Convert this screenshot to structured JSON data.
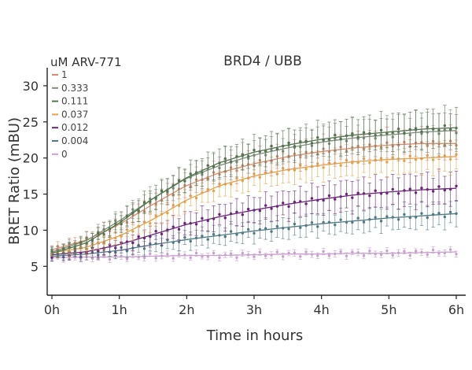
{
  "chart_data": {
    "type": "line",
    "title": "BRD4 / UBB",
    "xlabel": "Time in hours",
    "ylabel": "BRET Ratio (mBU)",
    "xlim": [
      0,
      6
    ],
    "ylim": [
      1,
      32.5
    ],
    "x_ticks": [
      0,
      1,
      2,
      3,
      4,
      5,
      6
    ],
    "x_tick_labels": [
      "0h",
      "1h",
      "2h",
      "3h",
      "4h",
      "5h",
      "6h"
    ],
    "y_ticks": [
      5,
      10,
      15,
      20,
      25,
      30
    ],
    "y_tick_labels": [
      "5",
      "10",
      "15",
      "20",
      "25",
      "30"
    ],
    "grid": false,
    "legend": {
      "title": "uM ARV-771",
      "position": "top-left"
    },
    "x": [
      0,
      0.5,
      1,
      1.5,
      2,
      2.5,
      3,
      3.5,
      4,
      4.5,
      5,
      5.5,
      6
    ],
    "series": [
      {
        "name": "1",
        "color": "#d98a6e",
        "values": [
          7.3,
          8.6,
          10.8,
          13.6,
          16.2,
          18.0,
          19.2,
          20.2,
          20.9,
          21.4,
          21.8,
          22.0,
          22.0
        ],
        "error": [
          0.5,
          0.8,
          1.1,
          1.4,
          1.5,
          1.6,
          1.7,
          1.8,
          1.8,
          1.9,
          1.9,
          2.0,
          2.0
        ]
      },
      {
        "name": "0.333",
        "color": "#7d8f7a",
        "values": [
          7.0,
          8.5,
          11.3,
          14.4,
          17.2,
          19.0,
          20.4,
          21.4,
          22.2,
          22.8,
          23.2,
          23.6,
          23.8
        ],
        "error": [
          0.5,
          0.8,
          1.2,
          1.5,
          1.6,
          1.8,
          1.9,
          2.0,
          2.1,
          2.2,
          2.3,
          2.4,
          2.5
        ]
      },
      {
        "name": "0.111",
        "color": "#53744e",
        "values": [
          6.8,
          8.2,
          11.0,
          14.4,
          17.3,
          19.4,
          20.8,
          21.8,
          22.6,
          23.2,
          23.6,
          24.0,
          24.2
        ],
        "error": [
          0.5,
          0.8,
          1.2,
          1.5,
          1.7,
          1.8,
          1.9,
          2.0,
          2.1,
          2.2,
          2.3,
          2.4,
          2.5
        ]
      },
      {
        "name": "0.037",
        "color": "#e2a24a",
        "values": [
          6.9,
          7.6,
          9.2,
          11.5,
          14.2,
          16.2,
          17.5,
          18.4,
          19.0,
          19.5,
          19.8,
          20.0,
          20.2
        ],
        "error": [
          0.5,
          0.7,
          1.0,
          1.3,
          1.5,
          1.6,
          1.7,
          1.8,
          1.8,
          1.9,
          1.9,
          2.0,
          2.0
        ]
      },
      {
        "name": "0.012",
        "color": "#6b2478",
        "values": [
          6.6,
          7.0,
          8.0,
          9.4,
          10.8,
          11.9,
          12.8,
          13.6,
          14.3,
          14.9,
          15.3,
          15.6,
          15.8
        ],
        "error": [
          0.5,
          0.8,
          1.0,
          1.3,
          1.5,
          1.6,
          1.7,
          1.8,
          1.9,
          2.0,
          2.0,
          2.1,
          2.1
        ]
      },
      {
        "name": "0.004",
        "color": "#4f7a85",
        "values": [
          6.4,
          6.7,
          7.2,
          8.0,
          8.7,
          9.3,
          9.9,
          10.4,
          10.9,
          11.3,
          11.7,
          12.0,
          12.3
        ],
        "error": [
          0.4,
          0.6,
          0.8,
          1.0,
          1.1,
          1.2,
          1.3,
          1.4,
          1.4,
          1.5,
          1.5,
          1.6,
          1.6
        ]
      },
      {
        "name": "0",
        "color": "#c9a0cf",
        "values": [
          6.2,
          6.3,
          6.3,
          6.4,
          6.5,
          6.5,
          6.6,
          6.7,
          6.7,
          6.8,
          6.8,
          6.9,
          7.0
        ],
        "error": [
          0.4,
          0.4,
          0.4,
          0.4,
          0.4,
          0.4,
          0.4,
          0.4,
          0.4,
          0.4,
          0.4,
          0.4,
          0.4
        ]
      }
    ]
  }
}
